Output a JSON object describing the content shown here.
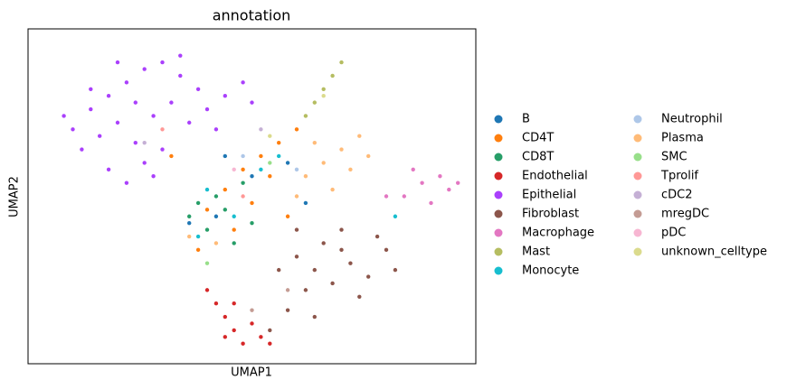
{
  "chart_data": {
    "type": "scatter",
    "title": "annotation",
    "x_label": "UMAP1",
    "y_label": "UMAP2",
    "xlim": [
      0,
      100
    ],
    "ylim": [
      0,
      100
    ],
    "grid": false,
    "legend": "right",
    "series": [
      {
        "name": "B",
        "color": "#1f77b4",
        "x": [
          42,
          50,
          58,
          36,
          44,
          62
        ],
        "y": [
          44,
          56,
          60,
          42,
          62,
          48
        ]
      },
      {
        "name": "CD4T",
        "color": "#ff7f0e",
        "x": [
          40,
          44,
          48,
          52,
          56,
          60,
          46,
          38,
          50,
          54,
          32,
          58
        ],
        "y": [
          46,
          52,
          58,
          62,
          66,
          70,
          40,
          34,
          48,
          56,
          62,
          44
        ]
      },
      {
        "name": "CD8T",
        "color": "#279e68",
        "x": [
          36,
          40,
          44,
          42,
          38,
          46,
          48,
          50
        ],
        "y": [
          44,
          40,
          46,
          50,
          48,
          36,
          54,
          42
        ]
      },
      {
        "name": "Endothelial",
        "color": "#d62728",
        "x": [
          44,
          46,
          48,
          50,
          52,
          42,
          46,
          54,
          44,
          40
        ],
        "y": [
          14,
          10,
          6,
          12,
          8,
          18,
          18,
          6,
          8,
          22
        ]
      },
      {
        "name": "Epithelial",
        "color": "#aa40fc",
        "x": [
          10,
          14,
          18,
          22,
          26,
          30,
          34,
          38,
          12,
          16,
          20,
          24,
          28,
          32,
          36,
          40,
          44,
          48,
          18,
          22,
          26,
          30,
          14,
          20,
          42,
          50,
          8,
          34,
          24,
          28
        ],
        "y": [
          70,
          76,
          80,
          84,
          88,
          90,
          86,
          82,
          64,
          68,
          72,
          66,
          74,
          78,
          72,
          76,
          80,
          84,
          58,
          54,
          60,
          64,
          82,
          90,
          70,
          78,
          74,
          92,
          78,
          56
        ]
      },
      {
        "name": "Fibroblast",
        "color": "#8c564b",
        "x": [
          60,
          64,
          68,
          72,
          76,
          80,
          66,
          70,
          74,
          62,
          58,
          54,
          78,
          82,
          56,
          64,
          70,
          60
        ],
        "y": [
          32,
          28,
          24,
          30,
          26,
          34,
          36,
          40,
          20,
          22,
          16,
          10,
          38,
          28,
          28,
          14,
          34,
          40
        ]
      },
      {
        "name": "Macrophage",
        "color": "#e377c2",
        "x": [
          84,
          88,
          92,
          94,
          90,
          86,
          80,
          96
        ],
        "y": [
          50,
          54,
          56,
          52,
          48,
          58,
          50,
          54
        ]
      },
      {
        "name": "Mast",
        "color": "#b5bd61",
        "x": [
          66,
          68,
          70,
          64,
          62
        ],
        "y": [
          82,
          86,
          90,
          78,
          74
        ]
      },
      {
        "name": "Monocyte",
        "color": "#17becf",
        "x": [
          40,
          46,
          52,
          38,
          56,
          82
        ],
        "y": [
          52,
          44,
          58,
          38,
          62,
          44
        ]
      },
      {
        "name": "Neutrophil",
        "color": "#aec7e8",
        "x": [
          48,
          60
        ],
        "y": [
          62,
          58
        ]
      },
      {
        "name": "Plasma",
        "color": "#ffbb78",
        "x": [
          62,
          66,
          70,
          74,
          72,
          68,
          76,
          64,
          60,
          42,
          36
        ],
        "y": [
          56,
          60,
          64,
          68,
          58,
          52,
          62,
          66,
          50,
          36,
          38
        ]
      },
      {
        "name": "SMC",
        "color": "#98df8a",
        "x": [
          40,
          54
        ],
        "y": [
          30,
          60
        ]
      },
      {
        "name": "Tprolif",
        "color": "#ff9896",
        "x": [
          48,
          30
        ],
        "y": [
          50,
          70
        ]
      },
      {
        "name": "cDC2",
        "color": "#c5b0d5",
        "x": [
          52,
          26
        ],
        "y": [
          70,
          66
        ]
      },
      {
        "name": "mregDC",
        "color": "#c49c94",
        "x": [
          58,
          50
        ],
        "y": [
          22,
          16
        ]
      },
      {
        "name": "pDC",
        "color": "#f7b6d2",
        "x": [
          46
        ],
        "y": [
          58
        ]
      },
      {
        "name": "unknown_celltype",
        "color": "#dbdb8d",
        "x": [
          66,
          54
        ],
        "y": [
          80,
          68
        ]
      }
    ]
  }
}
